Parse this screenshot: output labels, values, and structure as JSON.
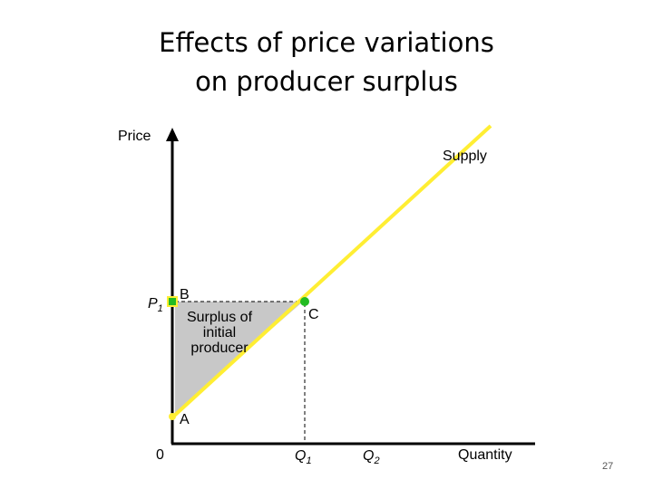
{
  "title": {
    "line1": "Effects of price variations",
    "line2": "on producer surplus"
  },
  "axes": {
    "y_label": "Price",
    "x_label": "Quantity",
    "origin": "0"
  },
  "curve": {
    "label": "Supply"
  },
  "price_label": {
    "main": "P",
    "sub": "1"
  },
  "quantity_labels": [
    {
      "main": "Q",
      "sub": "1"
    },
    {
      "main": "Q",
      "sub": "2"
    }
  ],
  "points": {
    "a": "A",
    "b": "B",
    "c": "C"
  },
  "surplus_label": [
    "Surplus of",
    "initial",
    "producer"
  ],
  "page_number": "27"
}
